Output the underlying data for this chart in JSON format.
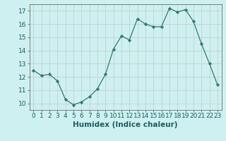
{
  "x": [
    0,
    1,
    2,
    3,
    4,
    5,
    6,
    7,
    8,
    9,
    10,
    11,
    12,
    13,
    14,
    15,
    16,
    17,
    18,
    19,
    20,
    21,
    22,
    23
  ],
  "y": [
    12.5,
    12.1,
    12.2,
    11.7,
    10.3,
    9.9,
    10.1,
    10.5,
    11.1,
    12.2,
    14.1,
    15.1,
    14.8,
    16.4,
    16.0,
    15.8,
    15.8,
    17.2,
    16.9,
    17.1,
    16.2,
    14.5,
    13.0,
    11.4
  ],
  "xlabel": "Humidex (Indice chaleur)",
  "ylim": [
    9.5,
    17.5
  ],
  "xlim": [
    -0.5,
    23.5
  ],
  "yticks": [
    10,
    11,
    12,
    13,
    14,
    15,
    16,
    17
  ],
  "xticks": [
    0,
    1,
    2,
    3,
    4,
    5,
    6,
    7,
    8,
    9,
    10,
    11,
    12,
    13,
    14,
    15,
    16,
    17,
    18,
    19,
    20,
    21,
    22,
    23
  ],
  "line_color": "#2d7d6e",
  "marker": "D",
  "marker_size": 2.2,
  "bg_color": "#cff0f0",
  "grid_color": "#c0d0d0",
  "axis_color": "#555555",
  "xlabel_fontsize": 7.5,
  "tick_fontsize": 6.5
}
